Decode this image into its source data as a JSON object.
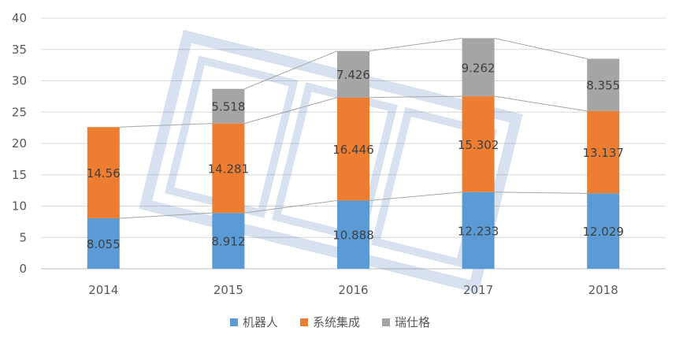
{
  "chart_data": {
    "type": "bar",
    "stacked": true,
    "categories": [
      "2014",
      "2015",
      "2016",
      "2017",
      "2018"
    ],
    "series": [
      {
        "name": "机器人",
        "color": "#5B9BD5",
        "values": [
          8.055,
          8.912,
          10.888,
          12.233,
          12.029
        ],
        "labels": [
          "8.055",
          "8.912",
          "10.888",
          "12.233",
          "12.029"
        ]
      },
      {
        "name": "系统集成",
        "color": "#ED7D31",
        "values": [
          14.56,
          14.281,
          16.446,
          15.302,
          13.137
        ],
        "labels": [
          "14.56",
          "14.281",
          "16.446",
          "15.302",
          "13.137"
        ]
      },
      {
        "name": "瑞仕格",
        "color": "#A5A5A5",
        "values": [
          null,
          5.518,
          7.426,
          9.262,
          8.355
        ],
        "labels": [
          "",
          "5.518",
          "7.426",
          "9.262",
          "8.355"
        ]
      }
    ],
    "ylim": [
      0,
      40
    ],
    "yticks": [
      0,
      5,
      10,
      15,
      20,
      25,
      30,
      35,
      40
    ],
    "grid": true,
    "series_lines": true,
    "legend_position": "bottom"
  }
}
